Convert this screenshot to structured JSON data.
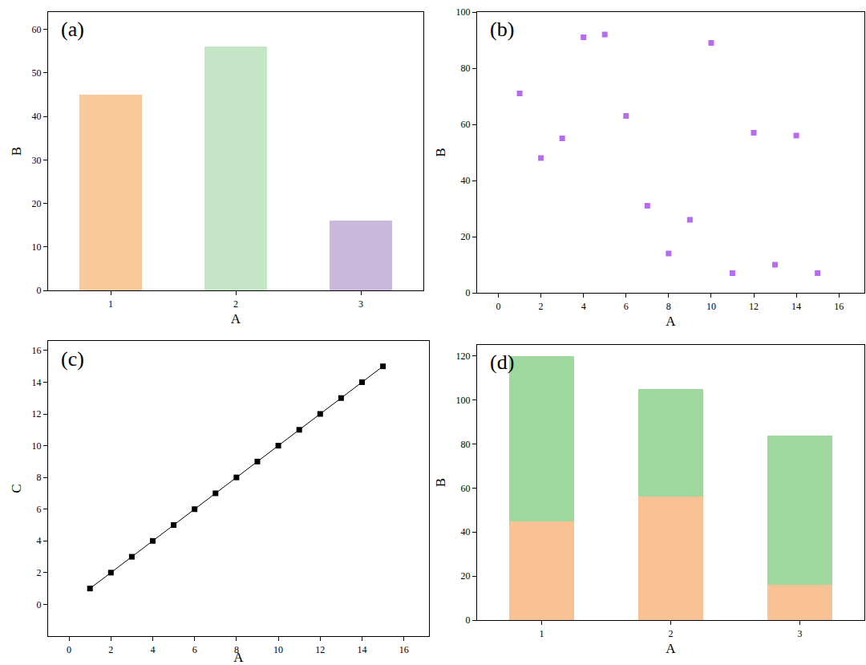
{
  "chart_data": [
    {
      "type": "bar",
      "title": "(a)",
      "x_label": "A",
      "y_label": "B",
      "x": [
        1,
        2,
        3
      ],
      "values": [
        45,
        56,
        16
      ],
      "colors": [
        "#f9c89b",
        "#c4e6c7",
        "#c9b8dc"
      ],
      "xlim": [
        0.5,
        3.5
      ],
      "xticks": [
        1,
        2,
        3
      ],
      "ylim": [
        0,
        64
      ],
      "yticks": [
        0,
        10,
        20,
        30,
        40,
        50,
        60
      ],
      "grid": false
    },
    {
      "type": "scatter",
      "title": "(b)",
      "x_label": "A",
      "y_label": "B",
      "x": [
        1,
        2,
        3,
        4,
        5,
        6,
        7,
        8,
        9,
        10,
        11,
        12,
        13,
        14,
        15
      ],
      "values": [
        71,
        48,
        55,
        91,
        92,
        63,
        31,
        14,
        26,
        89,
        7,
        57,
        10,
        56,
        7
      ],
      "color": "#b76cf0",
      "marker": "square",
      "xlim": [
        -1,
        17.2
      ],
      "xticks": [
        0,
        2,
        4,
        6,
        8,
        10,
        12,
        14,
        16
      ],
      "ylim": [
        0,
        100
      ],
      "yticks": [
        0,
        20,
        40,
        60,
        80,
        100
      ],
      "grid": false
    },
    {
      "type": "line",
      "title": "(c)",
      "x_label": "A",
      "y_label": "C",
      "x": [
        1,
        2,
        3,
        4,
        5,
        6,
        7,
        8,
        9,
        10,
        11,
        12,
        13,
        14,
        15
      ],
      "values": [
        1,
        2,
        3,
        4,
        5,
        6,
        7,
        8,
        9,
        10,
        11,
        12,
        13,
        14,
        15
      ],
      "color": "#000000",
      "marker": "square",
      "line_style": "solid",
      "xlim": [
        -1,
        17.2
      ],
      "xticks": [
        0,
        2,
        4,
        6,
        8,
        10,
        12,
        14,
        16
      ],
      "ylim": [
        -2,
        16.6
      ],
      "yticks": [
        0,
        2,
        4,
        6,
        8,
        10,
        12,
        14,
        16
      ],
      "grid": false
    },
    {
      "type": "bar",
      "title": "(d)",
      "x_label": "A",
      "y_label": "B",
      "stacked": true,
      "x": [
        1,
        2,
        3
      ],
      "series": [
        {
          "color": "#f9c294",
          "values": [
            45,
            56,
            16
          ]
        },
        {
          "color": "#9fd89f",
          "values": [
            75,
            49,
            68
          ]
        }
      ],
      "xlim": [
        0.5,
        3.5
      ],
      "xticks": [
        1,
        2,
        3
      ],
      "ylim": [
        0,
        125
      ],
      "yticks": [
        0,
        20,
        40,
        60,
        80,
        100,
        120
      ],
      "grid": false
    }
  ]
}
